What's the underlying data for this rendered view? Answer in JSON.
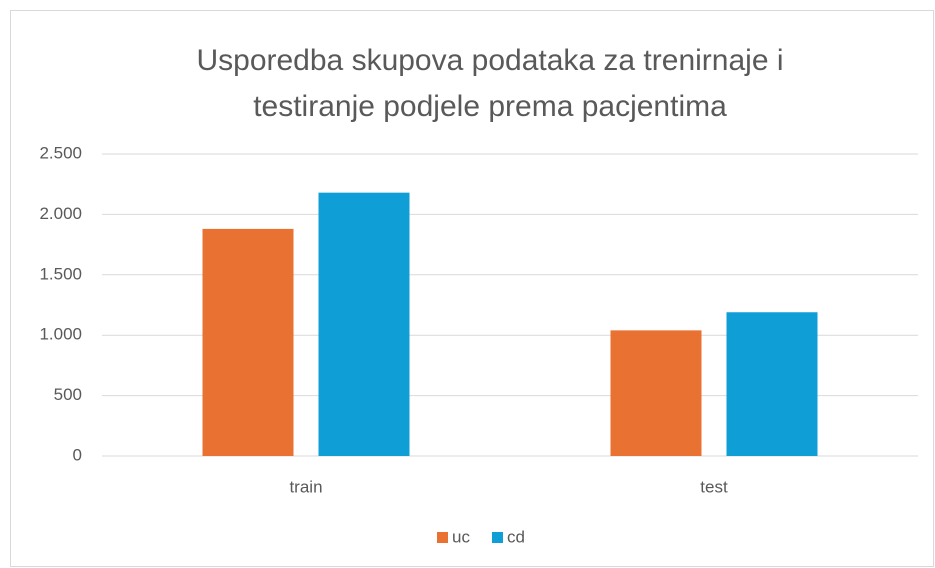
{
  "chart_data": {
    "type": "bar",
    "title": "Usporedba skupova podataka za trenirnaje i testiranje podjele prema pacjentima",
    "categories": [
      "train",
      "test"
    ],
    "series": [
      {
        "name": "uc",
        "color": "#e97132",
        "values": [
          1880,
          1040
        ]
      },
      {
        "name": "cd",
        "color": "#0f9ed5",
        "values": [
          2180,
          1190
        ]
      }
    ],
    "ylim": [
      0,
      2500
    ],
    "yticks": [
      0,
      500,
      {
        "value": 1000,
        "label": "1.000"
      },
      {
        "value": 1500,
        "label": "1.500"
      },
      {
        "value": 2000,
        "label": "2.000"
      },
      {
        "value": 2500,
        "label": "2.500"
      }
    ],
    "grid": true,
    "legend": "bottom"
  }
}
